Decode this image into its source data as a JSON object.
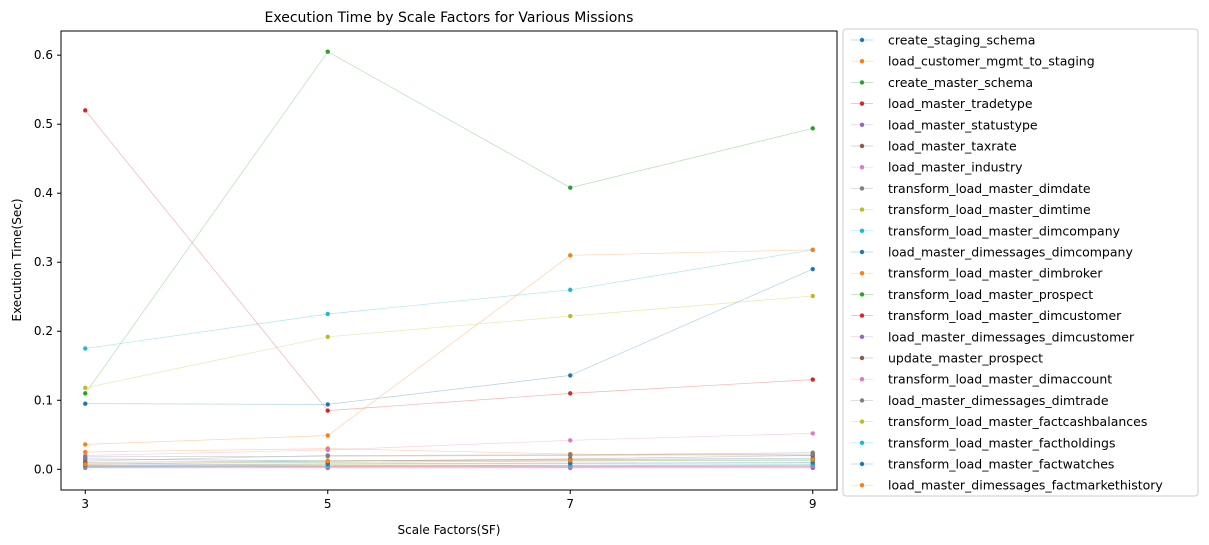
{
  "chart_data": {
    "type": "line",
    "title": "Execution Time by Scale Factors for Various Missions",
    "xlabel": "Scale Factors(SF)",
    "ylabel": "Execution Time(Sec)",
    "x": [
      3,
      5,
      7,
      9
    ],
    "xticks": [
      "3",
      "5",
      "7",
      "9"
    ],
    "yticks": [
      "0.0",
      "0.1",
      "0.2",
      "0.3",
      "0.4",
      "0.5",
      "0.6"
    ],
    "xlim": [
      2.8,
      9.2
    ],
    "ylim": [
      -0.03,
      0.635
    ],
    "grid": false,
    "legend_position": "outside-right",
    "series": [
      {
        "name": "create_staging_schema",
        "color": "#1f77b4",
        "values": [
          0.015,
          0.012,
          0.014,
          0.016
        ]
      },
      {
        "name": "load_customer_mgmt_to_staging",
        "color": "#ff7f0e",
        "values": [
          0.025,
          0.03,
          0.022,
          0.02
        ]
      },
      {
        "name": "create_master_schema",
        "color": "#2ca02c",
        "values": [
          0.11,
          0.605,
          0.408,
          0.494
        ]
      },
      {
        "name": "load_master_tradetype",
        "color": "#d62728",
        "values": [
          0.52,
          0.085,
          0.11,
          0.13
        ]
      },
      {
        "name": "load_master_statustype",
        "color": "#9467bd",
        "values": [
          0.004,
          0.003,
          0.004,
          0.003
        ]
      },
      {
        "name": "load_master_taxrate",
        "color": "#8c564b",
        "values": [
          0.005,
          0.006,
          0.005,
          0.006
        ]
      },
      {
        "name": "load_master_industry",
        "color": "#e377c2",
        "values": [
          0.02,
          0.028,
          0.042,
          0.052
        ]
      },
      {
        "name": "transform_load_master_dimdate",
        "color": "#7f7f7f",
        "values": [
          0.012,
          0.02,
          0.021,
          0.024
        ]
      },
      {
        "name": "transform_load_master_dimtime",
        "color": "#bcbd22",
        "values": [
          0.118,
          0.192,
          0.222,
          0.251
        ]
      },
      {
        "name": "transform_load_master_dimcompany",
        "color": "#17becf",
        "values": [
          0.175,
          0.225,
          0.26,
          0.318
        ]
      },
      {
        "name": "load_master_dimessages_dimcompany",
        "color": "#1f77b4",
        "values": [
          0.095,
          0.094,
          0.136,
          0.29
        ]
      },
      {
        "name": "transform_load_master_dimbroker",
        "color": "#ff7f0e",
        "values": [
          0.036,
          0.049,
          0.31,
          0.318
        ]
      },
      {
        "name": "transform_load_master_prospect",
        "color": "#2ca02c",
        "values": [
          0.008,
          0.01,
          0.012,
          0.013
        ]
      },
      {
        "name": "transform_load_master_dimcustomer",
        "color": "#d62728",
        "values": [
          0.003,
          0.004,
          0.003,
          0.004
        ]
      },
      {
        "name": "load_master_dimessages_dimcustomer",
        "color": "#9467bd",
        "values": [
          0.002,
          0.002,
          0.002,
          0.002
        ]
      },
      {
        "name": "update_master_prospect",
        "color": "#8c564b",
        "values": [
          0.01,
          0.012,
          0.015,
          0.02
        ]
      },
      {
        "name": "transform_load_master_dimaccount",
        "color": "#e377c2",
        "values": [
          0.003,
          0.004,
          0.004,
          0.005
        ]
      },
      {
        "name": "load_master_dimessages_dimtrade",
        "color": "#7f7f7f",
        "values": [
          0.018,
          0.019,
          0.02,
          0.022
        ]
      },
      {
        "name": "transform_load_master_factcashbalances",
        "color": "#bcbd22",
        "values": [
          0.005,
          0.007,
          0.008,
          0.009
        ]
      },
      {
        "name": "transform_load_master_factholdings",
        "color": "#17becf",
        "values": [
          0.004,
          0.005,
          0.006,
          0.007
        ]
      },
      {
        "name": "transform_load_master_factwatches",
        "color": "#1f77b4",
        "values": [
          0.006,
          0.008,
          0.009,
          0.01
        ]
      },
      {
        "name": "load_master_dimessages_factmarkethistory",
        "color": "#ff7f0e",
        "values": [
          0.007,
          0.012,
          0.013,
          0.014
        ]
      }
    ]
  }
}
